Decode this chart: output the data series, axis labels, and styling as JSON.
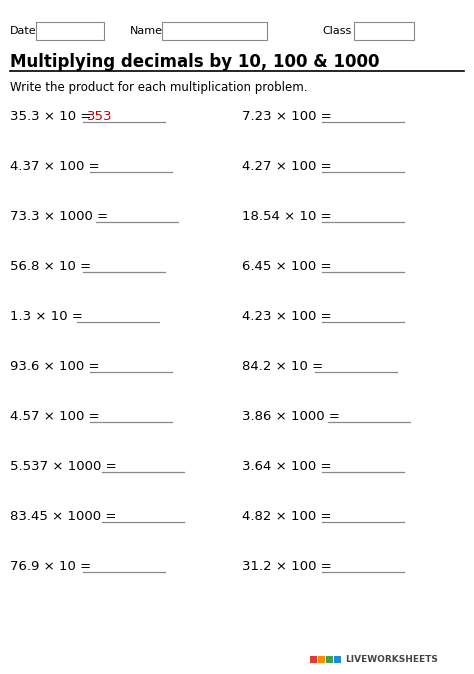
{
  "title": "Multiplying decimals by 10, 100 & 1000",
  "instruction": "Write the product for each multiplication problem.",
  "bg_color": "#ffffff",
  "answer_color": "#cc0000",
  "left_problems": [
    "35.3 × 10 =",
    "4.37 × 100 =",
    "73.3 × 1000 =",
    "56.8 × 10 =",
    "1.3 × 10 =",
    "93.6 × 100 =",
    "4.57 × 100 =",
    "5.537 × 1000 =",
    "83.45 × 1000 =",
    "76.9 × 10 ="
  ],
  "right_problems": [
    "7.23 × 100 =",
    "4.27 × 100 =",
    "18.54 × 10 =",
    "6.45 × 100 =",
    "4.23 × 100 =",
    "84.2 × 10 =",
    "3.86 × 1000 =",
    "3.64 × 100 =",
    "4.82 × 100 =",
    "31.2 × 100 ="
  ],
  "answer_text": "353",
  "watermark": "LIVEWORKSHEETS",
  "wm_colors": [
    "#e53935",
    "#fb8c00",
    "#43a047",
    "#1e88e5"
  ]
}
